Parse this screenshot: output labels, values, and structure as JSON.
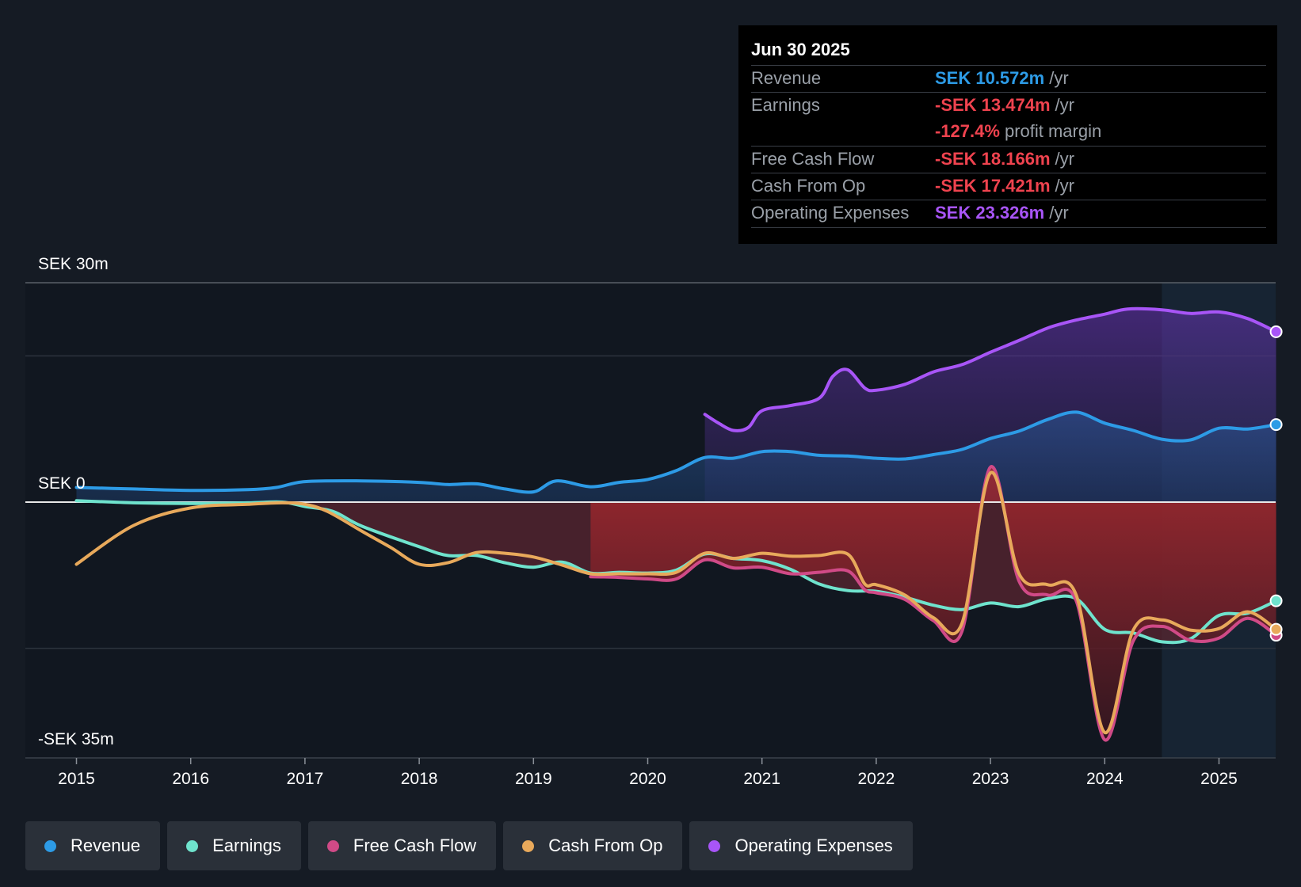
{
  "chart_data": {
    "type": "line",
    "y_axis": {
      "top_label": "SEK 30m",
      "zero_label": "SEK 0",
      "bottom_label": "-SEK 35m",
      "ylim": [
        -35,
        30
      ],
      "unit": "SEK m"
    },
    "xlim": [
      2014.55,
      2025.5
    ],
    "x_tick_labels": [
      "2015",
      "2016",
      "2017",
      "2018",
      "2019",
      "2020",
      "2021",
      "2022",
      "2023",
      "2024",
      "2025"
    ],
    "x_ticks": [
      2015,
      2016,
      2017,
      2018,
      2019,
      2020,
      2021,
      2022,
      2023,
      2024,
      2025
    ],
    "forecast_shade_start": 2024.5,
    "series": [
      {
        "name": "Operating Expenses",
        "color": "#a855f7",
        "x": [
          2020.5,
          2020.62,
          2020.75,
          2020.88,
          2021.0,
          2021.25,
          2021.5,
          2021.62,
          2021.75,
          2021.9,
          2022.0,
          2022.25,
          2022.5,
          2022.75,
          2023.0,
          2023.25,
          2023.5,
          2023.75,
          2024.0,
          2024.2,
          2024.5,
          2024.75,
          2025.0,
          2025.25,
          2025.5
        ],
        "values": [
          12.0,
          10.8,
          9.8,
          10.2,
          12.5,
          13.2,
          14.2,
          17.2,
          18.1,
          15.6,
          15.3,
          16.1,
          17.8,
          18.8,
          20.5,
          22.1,
          23.8,
          24.9,
          25.7,
          26.4,
          26.3,
          25.8,
          26.0,
          25.1,
          23.3
        ]
      },
      {
        "name": "Revenue",
        "color": "#2d9be6",
        "x": [
          2015.0,
          2015.5,
          2016.0,
          2016.5,
          2016.75,
          2017.0,
          2017.5,
          2018.0,
          2018.25,
          2018.5,
          2018.75,
          2019.0,
          2019.2,
          2019.5,
          2019.75,
          2020.0,
          2020.25,
          2020.5,
          2020.75,
          2021.0,
          2021.25,
          2021.5,
          2021.75,
          2022.0,
          2022.25,
          2022.5,
          2022.75,
          2023.0,
          2023.25,
          2023.5,
          2023.75,
          2024.0,
          2024.25,
          2024.5,
          2024.75,
          2025.0,
          2025.25,
          2025.5
        ],
        "values": [
          2.0,
          1.8,
          1.6,
          1.7,
          2.0,
          2.8,
          2.9,
          2.7,
          2.4,
          2.5,
          1.8,
          1.4,
          2.9,
          2.1,
          2.7,
          3.1,
          4.3,
          6.1,
          6.0,
          6.9,
          6.9,
          6.4,
          6.3,
          6.0,
          5.9,
          6.5,
          7.2,
          8.7,
          9.7,
          11.3,
          12.3,
          10.8,
          9.8,
          8.6,
          8.5,
          10.1,
          10.0,
          10.6
        ]
      },
      {
        "name": "Earnings",
        "color": "#6fe3cd",
        "x": [
          2015.0,
          2015.5,
          2016.0,
          2016.5,
          2016.8,
          2017.0,
          2017.25,
          2017.5,
          2018.0,
          2018.25,
          2018.5,
          2018.75,
          2019.0,
          2019.25,
          2019.5,
          2019.75,
          2020.0,
          2020.25,
          2020.5,
          2020.75,
          2021.0,
          2021.25,
          2021.5,
          2021.75,
          2022.0,
          2022.25,
          2022.5,
          2022.75,
          2023.0,
          2023.25,
          2023.5,
          2023.75,
          2024.0,
          2024.25,
          2024.5,
          2024.75,
          2025.0,
          2025.25,
          2025.5
        ],
        "values": [
          0.2,
          -0.1,
          -0.2,
          -0.1,
          0.0,
          -0.6,
          -1.3,
          -3.3,
          -6.1,
          -7.3,
          -7.3,
          -8.3,
          -8.9,
          -8.2,
          -9.7,
          -9.6,
          -9.7,
          -9.3,
          -7.1,
          -7.7,
          -8.0,
          -9.2,
          -11.2,
          -12.1,
          -12.2,
          -13.0,
          -14.1,
          -14.7,
          -13.8,
          -14.3,
          -13.2,
          -13.2,
          -17.4,
          -17.9,
          -19.1,
          -18.7,
          -15.5,
          -15.2,
          -13.5
        ]
      },
      {
        "name": "Free Cash Flow",
        "color": "#d04a87",
        "x": [
          2019.5,
          2019.75,
          2020.0,
          2020.25,
          2020.5,
          2020.75,
          2021.0,
          2021.25,
          2021.5,
          2021.75,
          2021.9,
          2022.0,
          2022.25,
          2022.5,
          2022.75,
          2023.0,
          2023.25,
          2023.5,
          2023.75,
          2024.0,
          2024.25,
          2024.5,
          2024.75,
          2025.0,
          2025.25,
          2025.5
        ],
        "values": [
          -10.2,
          -10.3,
          -10.5,
          -10.5,
          -7.9,
          -9.0,
          -8.9,
          -9.8,
          -9.6,
          -9.4,
          -12.0,
          -12.4,
          -13.3,
          -16.2,
          -17.7,
          4.8,
          -10.8,
          -12.7,
          -13.5,
          -32.5,
          -19.0,
          -17.0,
          -18.9,
          -18.6,
          -15.9,
          -18.2
        ]
      },
      {
        "name": "Cash From Op",
        "color": "#e8a95b",
        "x": [
          2015.0,
          2015.5,
          2016.0,
          2016.5,
          2016.8,
          2017.0,
          2017.2,
          2017.5,
          2017.75,
          2018.0,
          2018.25,
          2018.5,
          2018.75,
          2019.0,
          2019.25,
          2019.5,
          2019.75,
          2020.0,
          2020.25,
          2020.5,
          2020.75,
          2021.0,
          2021.25,
          2021.5,
          2021.75,
          2021.9,
          2022.0,
          2022.25,
          2022.5,
          2022.75,
          2023.0,
          2023.25,
          2023.5,
          2023.75,
          2024.0,
          2024.25,
          2024.5,
          2024.75,
          2025.0,
          2025.25,
          2025.5
        ],
        "values": [
          -8.5,
          -3.2,
          -0.8,
          -0.3,
          -0.1,
          -0.3,
          -1.3,
          -4.0,
          -6.2,
          -8.5,
          -8.3,
          -6.9,
          -7.0,
          -7.5,
          -8.6,
          -9.8,
          -9.8,
          -9.8,
          -9.6,
          -7.0,
          -7.7,
          -7.0,
          -7.4,
          -7.3,
          -7.1,
          -11.2,
          -11.3,
          -12.7,
          -15.8,
          -16.6,
          4.0,
          -9.8,
          -11.3,
          -12.7,
          -31.5,
          -17.5,
          -16.1,
          -17.5,
          -17.3,
          -15.0,
          -17.4
        ]
      }
    ]
  },
  "tooltip": {
    "date": "Jun 30 2025",
    "rows": {
      "revenue": {
        "label": "Revenue",
        "value": "SEK 10.572m",
        "suffix": "/yr"
      },
      "earnings": {
        "label": "Earnings",
        "value": "-SEK 13.474m",
        "suffix": "/yr"
      },
      "margin": {
        "value": "-127.4%",
        "suffix": "profit margin"
      },
      "fcf": {
        "label": "Free Cash Flow",
        "value": "-SEK 18.166m",
        "suffix": "/yr"
      },
      "cfo": {
        "label": "Cash From Op",
        "value": "-SEK 17.421m",
        "suffix": "/yr"
      },
      "opex": {
        "label": "Operating Expenses",
        "value": "SEK 23.326m",
        "suffix": "/yr"
      }
    }
  },
  "legend": [
    {
      "label": "Revenue",
      "color": "#2d9be6"
    },
    {
      "label": "Earnings",
      "color": "#6fe3cd"
    },
    {
      "label": "Free Cash Flow",
      "color": "#d04a87"
    },
    {
      "label": "Cash From Op",
      "color": "#e8a95b"
    },
    {
      "label": "Operating Expenses",
      "color": "#a855f7"
    }
  ],
  "colors": {
    "revenue": "#2d9be6",
    "negative": "#f0434f",
    "opex": "#a855f7",
    "background": "#151b24"
  }
}
